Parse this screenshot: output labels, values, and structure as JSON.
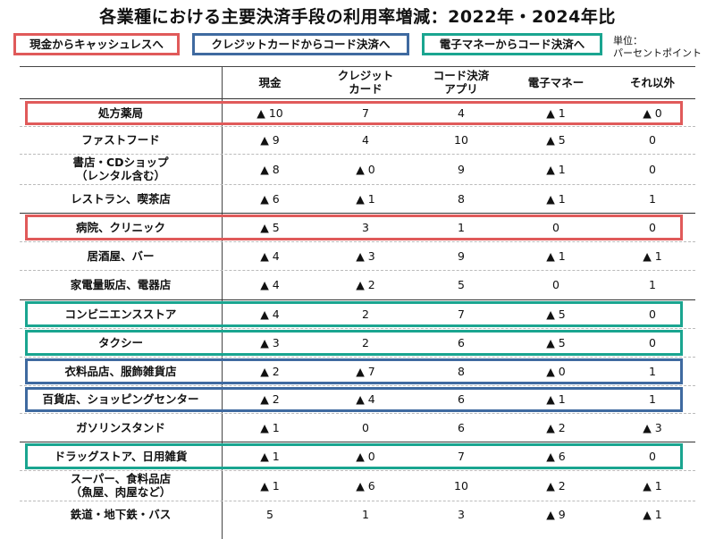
{
  "colors": {
    "red": "#e05a5a",
    "blue": "#3f6aa0",
    "teal": "#1aa590"
  },
  "title": "各業種における主要決済手段の利用率増減：2022年・2024年比",
  "legend": [
    {
      "label": "現金からキャッシュレスへ",
      "color": "red"
    },
    {
      "label": "クレジットカードからコード決済へ",
      "color": "blue"
    },
    {
      "label": "電子マネーからコード決済へ",
      "color": "teal"
    }
  ],
  "unit": [
    "単位：",
    "パーセントポイント"
  ],
  "chart_data": {
    "type": "table",
    "columns": [
      "現金",
      "クレジット\nカード",
      "コード決済\nアプリ",
      "電子マネー",
      "それ以外"
    ],
    "rows": [
      {
        "label": "処方薬局",
        "values": [
          "▲ 10",
          "7",
          "4",
          "▲ 1",
          "▲ 0"
        ],
        "highlight": "red"
      },
      {
        "label": "ファストフード",
        "values": [
          "▲ 9",
          "4",
          "10",
          "▲ 5",
          "0"
        ],
        "highlight": null
      },
      {
        "label": "書店・CDショップ\n（レンタル含む）",
        "values": [
          "▲ 8",
          "▲ 0",
          "9",
          "▲ 1",
          "0"
        ],
        "highlight": null
      },
      {
        "label": "レストラン、喫茶店",
        "values": [
          "▲ 6",
          "▲ 1",
          "8",
          "▲ 1",
          "1"
        ],
        "highlight": null
      },
      {
        "label": "病院、クリニック",
        "values": [
          "▲ 5",
          "3",
          "1",
          "0",
          "0"
        ],
        "highlight": "red"
      },
      {
        "label": "居酒屋、バー",
        "values": [
          "▲ 4",
          "▲ 3",
          "9",
          "▲ 1",
          "▲ 1"
        ],
        "highlight": null
      },
      {
        "label": "家電量販店、電器店",
        "values": [
          "▲ 4",
          "▲ 2",
          "5",
          "0",
          "1"
        ],
        "highlight": null
      },
      {
        "label": "コンビニエンスストア",
        "values": [
          "▲ 4",
          "2",
          "7",
          "▲ 5",
          "0"
        ],
        "highlight": "teal"
      },
      {
        "label": "タクシー",
        "values": [
          "▲ 3",
          "2",
          "6",
          "▲ 5",
          "0"
        ],
        "highlight": "teal"
      },
      {
        "label": "衣料品店、服飾雑貨店",
        "values": [
          "▲ 2",
          "▲ 7",
          "8",
          "▲ 0",
          "1"
        ],
        "highlight": "blue"
      },
      {
        "label": "百貨店、ショッピングセンター",
        "values": [
          "▲ 2",
          "▲ 4",
          "6",
          "▲ 1",
          "1"
        ],
        "highlight": "blue"
      },
      {
        "label": "ガソリンスタンド",
        "values": [
          "▲ 1",
          "0",
          "6",
          "▲ 2",
          "▲ 3"
        ],
        "highlight": null
      },
      {
        "label": "ドラッグストア、日用雑貨",
        "values": [
          "▲ 1",
          "▲ 0",
          "7",
          "▲ 6",
          "0"
        ],
        "highlight": "teal"
      },
      {
        "label": "スーパー、食料品店\n（魚屋、肉屋など）",
        "values": [
          "▲ 1",
          "▲ 6",
          "10",
          "▲ 2",
          "▲ 1"
        ],
        "highlight": null
      },
      {
        "label": "鉄道・地下鉄・バス",
        "values": [
          "5",
          "1",
          "3",
          "▲ 9",
          "▲ 1"
        ],
        "highlight": null
      }
    ]
  }
}
